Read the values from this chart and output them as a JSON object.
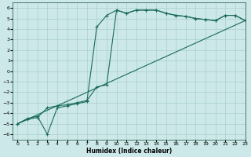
{
  "xlabel": "Humidex (Indice chaleur)",
  "xlim": [
    -0.5,
    23
  ],
  "ylim": [
    -6.5,
    6.5
  ],
  "xticks": [
    0,
    1,
    2,
    3,
    4,
    5,
    6,
    7,
    8,
    9,
    10,
    11,
    12,
    13,
    14,
    15,
    16,
    17,
    18,
    19,
    20,
    21,
    22,
    23
  ],
  "yticks": [
    -6,
    -5,
    -4,
    -3,
    -2,
    -1,
    0,
    1,
    2,
    3,
    4,
    5,
    6
  ],
  "bg_color": "#cce8e8",
  "grid_color": "#aacfcf",
  "line_color": "#1a6b5a",
  "line1_x": [
    0,
    23
  ],
  "line1_y": [
    -5.0,
    4.8
  ],
  "line2_x": [
    0,
    1,
    2,
    3,
    4,
    5,
    6,
    7,
    8,
    9,
    10,
    11,
    12,
    13,
    14,
    15,
    16,
    17,
    18,
    19,
    20,
    21,
    22,
    23
  ],
  "line2_y": [
    -5.0,
    -4.6,
    -4.4,
    -3.5,
    -3.3,
    -3.2,
    -3.0,
    -2.8,
    -1.5,
    -1.3,
    5.8,
    5.5,
    5.8,
    5.8,
    5.8,
    5.5,
    5.3,
    5.2,
    5.0,
    4.9,
    4.8,
    5.3,
    5.3,
    4.8
  ],
  "line3_x": [
    0,
    1,
    2,
    3,
    4,
    5,
    6,
    7,
    8,
    9,
    10,
    11,
    12,
    13,
    14,
    15,
    16,
    17,
    18,
    19,
    20,
    21,
    22,
    23
  ],
  "line3_y": [
    -5.0,
    -4.5,
    -4.3,
    -6.0,
    -3.5,
    -3.3,
    -3.1,
    -2.9,
    4.2,
    5.3,
    5.8,
    5.5,
    5.8,
    5.8,
    5.8,
    5.5,
    5.3,
    5.2,
    5.0,
    4.9,
    4.8,
    5.3,
    5.3,
    4.8
  ]
}
